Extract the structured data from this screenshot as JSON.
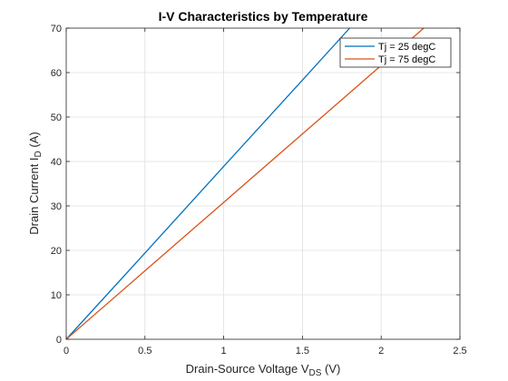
{
  "chart_data": {
    "type": "line",
    "title": "I-V Characteristics by Temperature",
    "xlabel": {
      "main": "Drain-Source  Voltage  V",
      "sub": "DS",
      "unit": "  (V)"
    },
    "ylabel": {
      "main": "Drain  Current  I",
      "sub": "D",
      "unit": "  (A)"
    },
    "xlim": [
      0,
      2.5
    ],
    "ylim": [
      0,
      70
    ],
    "xticks": [
      0,
      0.5,
      1,
      1.5,
      2,
      2.5
    ],
    "xtick_labels": [
      "0",
      "0.5",
      "1",
      "1.5",
      "2",
      "2.5"
    ],
    "yticks": [
      0,
      10,
      20,
      30,
      40,
      50,
      60,
      70
    ],
    "ytick_labels": [
      "0",
      "10",
      "20",
      "30",
      "40",
      "50",
      "60",
      "70"
    ],
    "grid": true,
    "legend_position": "top-right",
    "series": [
      {
        "name": "Tj = 25 degC",
        "color": "#0072BD",
        "x": [
          0,
          0.5,
          1.0,
          1.5,
          1.8
        ],
        "y": [
          0,
          19.4,
          38.9,
          58.3,
          70.0
        ]
      },
      {
        "name": "Tj = 75 degC",
        "color": "#D95319",
        "x": [
          0,
          0.5,
          1.0,
          1.5,
          2.0,
          2.27
        ],
        "y": [
          0,
          15.4,
          30.8,
          46.2,
          61.6,
          70.0
        ]
      }
    ]
  }
}
